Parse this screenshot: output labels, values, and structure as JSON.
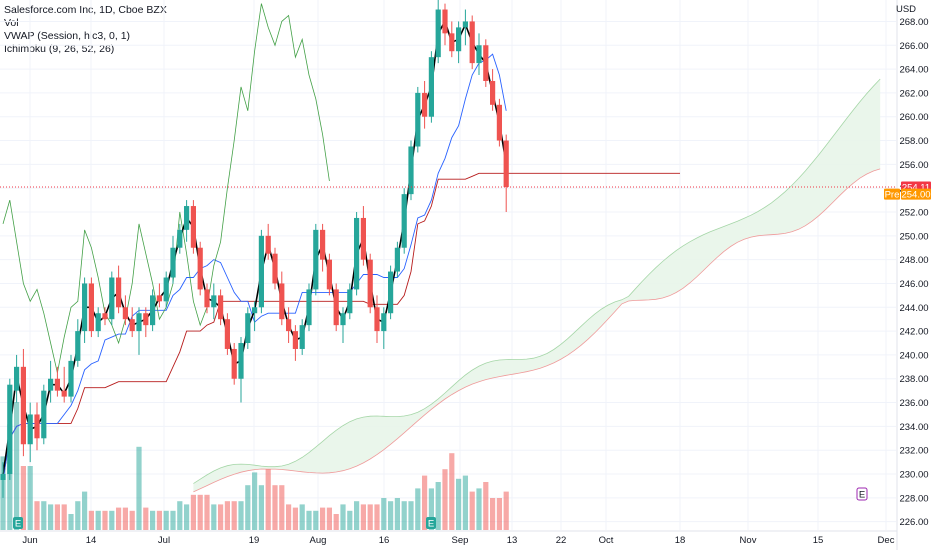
{
  "legend": {
    "symbol": "Salesforce.com Inc, 1D, Cboe BZX",
    "vol": "Vol",
    "vwap": "VWAP (Session, hlc3, 0, 1)",
    "ichimoku": "Ichimoku (9, 26, 52, 26)"
  },
  "currency": "USD",
  "price_badge": {
    "value": "254.11",
    "color": "#f23645"
  },
  "pre_badge": {
    "label": "Pre",
    "value": "254.00",
    "color": "#ff9800"
  },
  "colors": {
    "up": "#26a69a",
    "down": "#ef5350",
    "vwap": "#000000",
    "conversion": "#2962ff",
    "base": "#b71c1c",
    "lagging": "#43a047",
    "cloud": "#e8f5e9",
    "span_b": "#ef9a9a",
    "span_a": "#a5d6a7"
  },
  "chart_data": {
    "type": "candlestick",
    "y_axis_ticks": [
      226,
      228,
      230,
      232,
      234,
      236,
      238,
      240,
      242,
      244,
      246,
      248,
      250,
      252,
      254,
      256,
      258,
      260,
      262,
      264,
      266,
      268
    ],
    "ylim": [
      225.3,
      269.8
    ],
    "x_axis_labels": [
      "Jun",
      "14",
      "Jul",
      "19",
      "Aug",
      "16",
      "Sep",
      "13",
      "22",
      "Oct",
      "18",
      "Nov",
      "15",
      "Dec"
    ],
    "ohlc": [
      [
        229.5,
        231,
        228,
        230
      ],
      [
        230,
        238,
        229.5,
        237.5
      ],
      [
        237,
        240,
        236,
        239
      ],
      [
        239,
        240.5,
        231.5,
        232.5
      ],
      [
        232.5,
        236,
        231,
        235
      ],
      [
        235,
        236,
        232,
        233
      ],
      [
        233,
        237.5,
        232.5,
        237
      ],
      [
        237,
        239.5,
        236,
        238
      ],
      [
        238,
        239,
        236.5,
        237
      ],
      [
        237,
        239,
        236,
        236.5
      ],
      [
        236.5,
        240,
        236,
        239.5
      ],
      [
        239.5,
        243,
        239,
        242
      ],
      [
        242,
        246.5,
        241,
        246
      ],
      [
        246,
        246.5,
        241.5,
        242
      ],
      [
        242,
        244,
        241.5,
        243.5
      ],
      [
        243.5,
        244,
        242.5,
        243
      ],
      [
        243,
        247,
        242.5,
        246.5
      ],
      [
        246.5,
        247.5,
        243.5,
        244
      ],
      [
        244,
        245,
        242.5,
        243
      ],
      [
        243,
        244,
        241.5,
        242
      ],
      [
        242,
        244,
        240,
        243.5
      ],
      [
        243.5,
        244,
        241.5,
        242.5
      ],
      [
        242.5,
        245.5,
        242,
        245
      ],
      [
        245,
        246,
        244,
        244.5
      ],
      [
        244.5,
        247,
        244,
        246.5
      ],
      [
        246.5,
        250,
        246,
        249
      ],
      [
        249,
        251,
        248.5,
        250.5
      ],
      [
        250.5,
        253,
        249.5,
        252.5
      ],
      [
        252.5,
        253,
        248.5,
        249
      ],
      [
        249,
        249.5,
        245,
        245.5
      ],
      [
        245.5,
        246,
        243.5,
        244
      ],
      [
        244,
        246,
        243,
        245
      ],
      [
        245,
        245.5,
        242.5,
        243
      ],
      [
        243,
        243.5,
        240,
        240.5
      ],
      [
        240.5,
        241,
        237.5,
        238
      ],
      [
        238,
        241.5,
        236,
        241
      ],
      [
        241,
        244,
        240.5,
        243.5
      ],
      [
        243.5,
        244.5,
        242,
        244
      ],
      [
        244,
        250.5,
        243.5,
        250
      ],
      [
        250,
        251,
        248,
        248.5
      ],
      [
        248.5,
        249,
        245.5,
        246
      ],
      [
        246,
        247,
        242.5,
        243
      ],
      [
        243,
        244,
        241,
        242
      ],
      [
        242,
        242.5,
        239.5,
        240.5
      ],
      [
        240.5,
        243,
        240,
        242.5
      ],
      [
        242.5,
        246,
        242,
        245.5
      ],
      [
        245.5,
        251,
        245,
        250.5
      ],
      [
        250.5,
        251,
        247,
        248
      ],
      [
        248,
        248.5,
        245,
        245.5
      ],
      [
        245.5,
        246,
        242,
        242.5
      ],
      [
        242.5,
        244,
        241,
        243.5
      ],
      [
        243.5,
        246,
        243,
        245.5
      ],
      [
        245.5,
        252,
        245,
        251.5
      ],
      [
        251.5,
        252.5,
        247.5,
        248
      ],
      [
        248,
        248.5,
        243.5,
        244
      ],
      [
        244,
        245,
        241,
        242
      ],
      [
        242,
        244,
        240.5,
        243.5
      ],
      [
        243.5,
        247.5,
        243,
        247
      ],
      [
        247,
        249.5,
        246.5,
        249
      ],
      [
        249,
        254,
        248.5,
        253.5
      ],
      [
        253.5,
        258,
        253,
        257.5
      ],
      [
        257.5,
        262.5,
        257,
        262
      ],
      [
        262,
        263,
        259,
        260
      ],
      [
        260,
        265.5,
        259.5,
        265
      ],
      [
        265,
        270,
        264.5,
        269
      ],
      [
        269,
        269.5,
        266,
        267
      ],
      [
        267,
        268,
        265,
        265.5
      ],
      [
        265.5,
        268,
        264.5,
        267.5
      ],
      [
        267.5,
        269,
        266,
        268
      ],
      [
        268,
        268.5,
        264,
        264.5
      ],
      [
        264.5,
        267,
        263.5,
        266
      ],
      [
        266,
        266.5,
        262.5,
        263
      ],
      [
        263,
        264,
        260.5,
        261
      ],
      [
        261,
        261.5,
        257.5,
        258
      ],
      [
        258,
        258.5,
        252,
        254.1
      ]
    ],
    "volume": [
      23,
      33,
      40,
      20,
      20,
      9,
      9,
      8,
      8,
      8,
      5,
      9,
      12,
      6,
      6,
      6,
      6,
      7,
      7,
      6,
      26,
      7,
      6,
      6,
      6,
      6,
      9,
      8,
      11,
      11,
      11,
      8,
      8,
      9,
      9,
      9,
      14,
      18,
      14,
      19,
      14,
      14,
      8,
      7,
      8,
      6,
      6,
      7,
      7,
      5,
      8,
      6,
      9,
      8,
      8,
      8,
      10,
      9,
      10,
      9,
      9,
      13,
      17,
      13,
      15,
      19,
      24,
      16,
      17,
      12,
      13,
      15,
      10,
      10,
      12
    ]
  }
}
